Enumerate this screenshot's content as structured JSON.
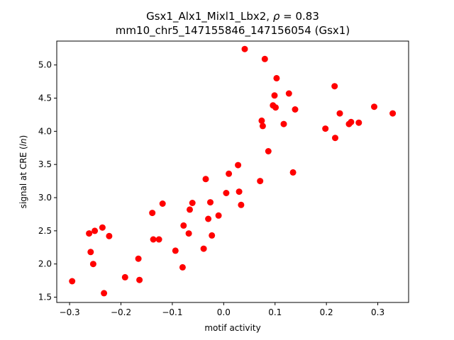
{
  "chart_data": {
    "type": "scatter",
    "title_line1": "Gsx1_Alx1_Mixl1_Lbx2, ",
    "title_rho_symbol": "ρ",
    "title_rho_value": " = 0.83",
    "title_line2": "mm10_chr5_147155846_147156054 (Gsx1)",
    "xlabel": "motif activity",
    "ylabel_prefix": "signal at CRE (",
    "ylabel_italic": "ln",
    "ylabel_suffix": ")",
    "xlim": [
      -0.325,
      0.36
    ],
    "ylim": [
      1.42,
      5.36
    ],
    "xticks": [
      -0.3,
      -0.2,
      -0.1,
      0.0,
      0.1,
      0.2,
      0.3
    ],
    "xtick_labels": [
      "−0.3",
      "−0.2",
      "−0.1",
      "0.0",
      "0.1",
      "0.2",
      "0.3"
    ],
    "yticks": [
      1.5,
      2.0,
      2.5,
      3.0,
      3.5,
      4.0,
      4.5,
      5.0
    ],
    "ytick_labels": [
      "1.5",
      "2.0",
      "2.5",
      "3.0",
      "3.5",
      "4.0",
      "4.5",
      "5.0"
    ],
    "grid": false,
    "marker_color": "#ff0000",
    "points": [
      {
        "x": -0.295,
        "y": 1.74
      },
      {
        "x": -0.262,
        "y": 2.46
      },
      {
        "x": -0.259,
        "y": 2.18
      },
      {
        "x": -0.254,
        "y": 2.0
      },
      {
        "x": -0.251,
        "y": 2.5
      },
      {
        "x": -0.236,
        "y": 2.55
      },
      {
        "x": -0.233,
        "y": 1.56
      },
      {
        "x": -0.223,
        "y": 2.42
      },
      {
        "x": -0.192,
        "y": 1.8
      },
      {
        "x": -0.166,
        "y": 2.08
      },
      {
        "x": -0.164,
        "y": 1.76
      },
      {
        "x": -0.139,
        "y": 2.77
      },
      {
        "x": -0.137,
        "y": 2.37
      },
      {
        "x": -0.126,
        "y": 2.37
      },
      {
        "x": -0.119,
        "y": 2.91
      },
      {
        "x": -0.094,
        "y": 2.2
      },
      {
        "x": -0.08,
        "y": 1.95
      },
      {
        "x": -0.078,
        "y": 2.58
      },
      {
        "x": -0.068,
        "y": 2.46
      },
      {
        "x": -0.066,
        "y": 2.82
      },
      {
        "x": -0.061,
        "y": 2.92
      },
      {
        "x": -0.039,
        "y": 2.23
      },
      {
        "x": -0.035,
        "y": 3.28
      },
      {
        "x": -0.03,
        "y": 2.68
      },
      {
        "x": -0.026,
        "y": 2.93
      },
      {
        "x": -0.023,
        "y": 2.43
      },
      {
        "x": -0.01,
        "y": 2.73
      },
      {
        "x": 0.005,
        "y": 3.07
      },
      {
        "x": 0.01,
        "y": 3.36
      },
      {
        "x": 0.028,
        "y": 3.49
      },
      {
        "x": 0.03,
        "y": 3.09
      },
      {
        "x": 0.034,
        "y": 2.89
      },
      {
        "x": 0.041,
        "y": 5.24
      },
      {
        "x": 0.071,
        "y": 3.25
      },
      {
        "x": 0.074,
        "y": 4.16
      },
      {
        "x": 0.076,
        "y": 4.08
      },
      {
        "x": 0.08,
        "y": 5.09
      },
      {
        "x": 0.087,
        "y": 3.7
      },
      {
        "x": 0.096,
        "y": 4.39
      },
      {
        "x": 0.099,
        "y": 4.54
      },
      {
        "x": 0.101,
        "y": 4.36
      },
      {
        "x": 0.103,
        "y": 4.8
      },
      {
        "x": 0.117,
        "y": 4.11
      },
      {
        "x": 0.127,
        "y": 4.57
      },
      {
        "x": 0.135,
        "y": 3.38
      },
      {
        "x": 0.139,
        "y": 4.33
      },
      {
        "x": 0.198,
        "y": 4.04
      },
      {
        "x": 0.216,
        "y": 4.68
      },
      {
        "x": 0.217,
        "y": 3.9
      },
      {
        "x": 0.226,
        "y": 4.27
      },
      {
        "x": 0.244,
        "y": 4.11
      },
      {
        "x": 0.248,
        "y": 4.14
      },
      {
        "x": 0.263,
        "y": 4.13
      },
      {
        "x": 0.293,
        "y": 4.37
      },
      {
        "x": 0.329,
        "y": 4.27
      }
    ]
  }
}
